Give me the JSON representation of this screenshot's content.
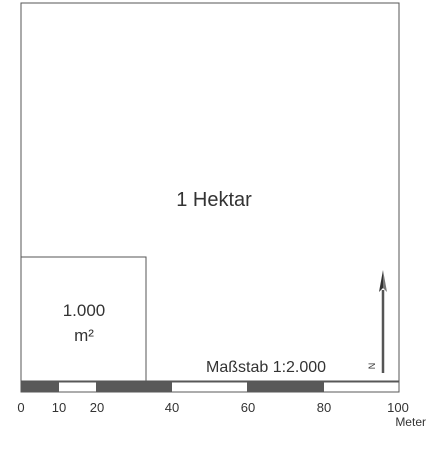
{
  "diagram": {
    "hectare_label": "1 Hektar",
    "small_area_line1": "1.000",
    "small_area_line2": "m²",
    "scale_label": "Maßstab 1:2.000",
    "north_label": "N",
    "unit_label": "Meter",
    "ticks": [
      "0",
      "10",
      "20",
      "40",
      "60",
      "80",
      "100"
    ],
    "colors": {
      "outline": "#555555",
      "scalebar_dark": "#595959",
      "scalebar_light": "#ffffff",
      "text": "#333333"
    }
  }
}
